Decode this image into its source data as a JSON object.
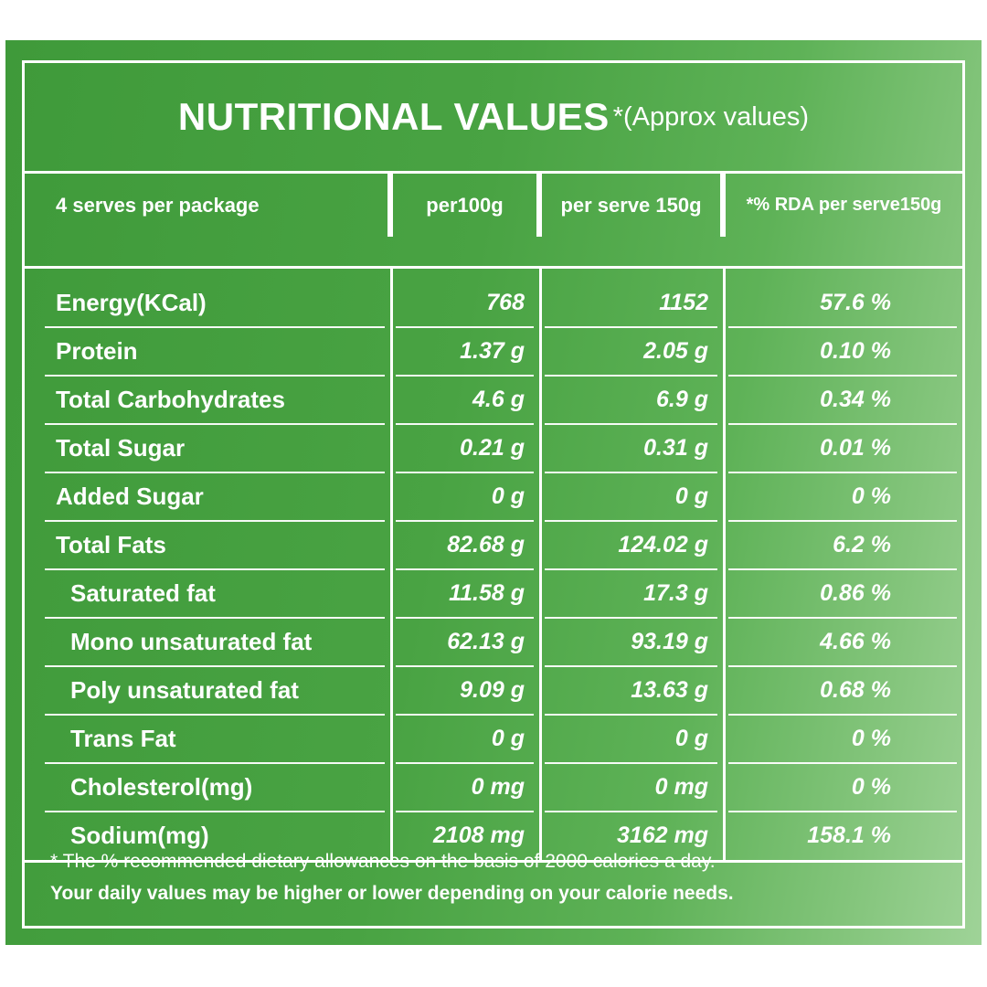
{
  "title": {
    "main": "NUTRITIONAL VALUES",
    "note": "*(Approx values)"
  },
  "table": {
    "headers": [
      "4 serves per package",
      "per100g",
      "per serve 150g",
      "*% RDA per serve150g"
    ],
    "rows": [
      {
        "name": "Energy(KCal)",
        "per100": "768",
        "perServe": "1152",
        "rda": "57.6 %"
      },
      {
        "name": "Protein",
        "per100": "1.37 g",
        "perServe": "2.05 g",
        "rda": "0.10 %"
      },
      {
        "name": "Total Carbohydrates",
        "per100": "4.6 g",
        "perServe": "6.9 g",
        "rda": "0.34 %"
      },
      {
        "name": "Total Sugar",
        "per100": "0.21 g",
        "perServe": "0.31 g",
        "rda": "0.01 %"
      },
      {
        "name": "Added Sugar",
        "per100": "0 g",
        "perServe": "0 g",
        "rda": "0 %"
      },
      {
        "name": "Total Fats",
        "per100": "82.68 g",
        "perServe": "124.02 g",
        "rda": "6.2 %"
      },
      {
        "name": "Saturated fat",
        "per100": "11.58 g",
        "perServe": "17.3 g",
        "rda": "0.86 %"
      },
      {
        "name": "Mono unsaturated fat",
        "per100": "62.13 g",
        "perServe": "93.19 g",
        "rda": "4.66 %"
      },
      {
        "name": "Poly unsaturated fat",
        "per100": "9.09 g",
        "perServe": "13.63 g",
        "rda": "0.68 %"
      },
      {
        "name": "Trans Fat",
        "per100": "0 g",
        "perServe": "0 g",
        "rda": "0 %"
      },
      {
        "name": "Cholesterol(mg)",
        "per100": "0 mg",
        "perServe": "0 mg",
        "rda": "0 %"
      },
      {
        "name": "Sodium(mg)",
        "per100": "2108 mg",
        "perServe": "3162 mg",
        "rda": "158.1 %"
      }
    ]
  },
  "footnote": {
    "line1": "* The % recommended dietary allowances on the basis of 2000 calories a day.",
    "line2": "Your daily values may be higher or lower depending on your calorie needs."
  },
  "colors": {
    "panel_dark": "#3f9a3a",
    "panel_light": "#9fd398",
    "text": "#ffffff"
  }
}
